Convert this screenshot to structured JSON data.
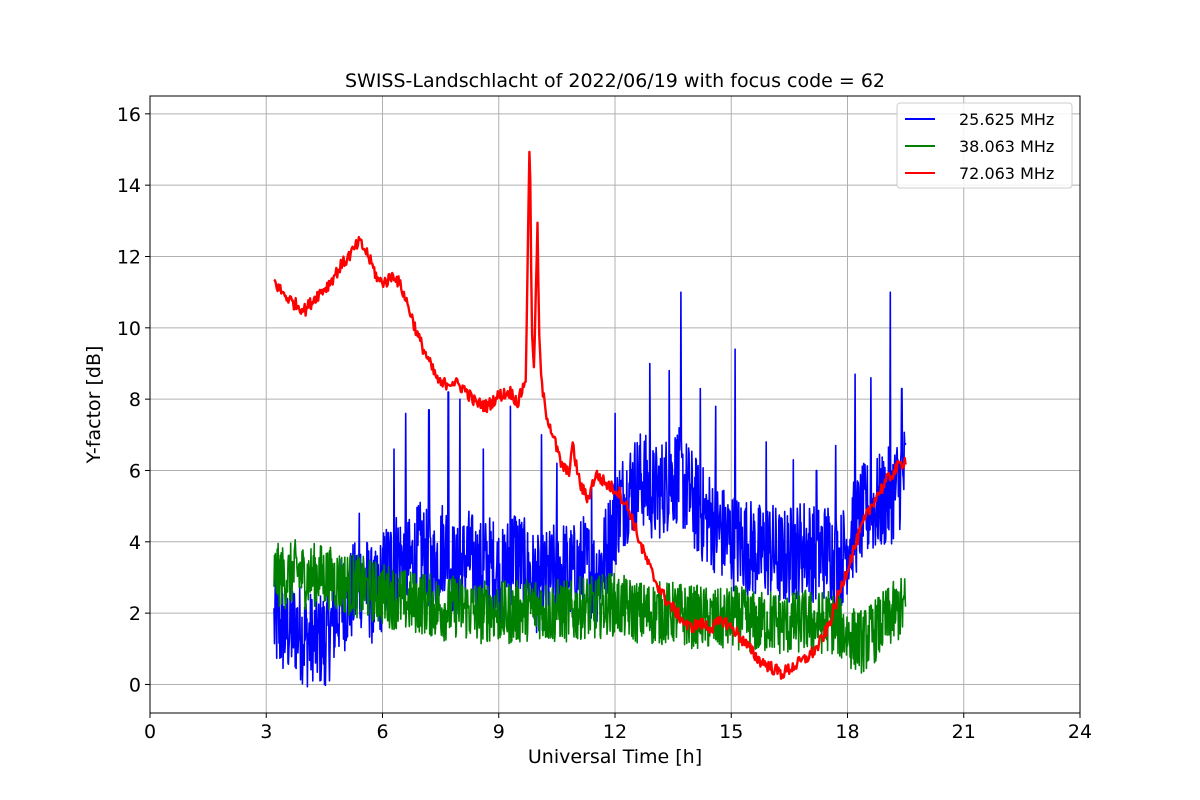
{
  "chart_data": {
    "type": "line",
    "title": "SWISS-Landschlacht of 2022/06/19 with focus code = 62",
    "xlabel": "Universal Time [h]",
    "ylabel": "Y-factor [dB]",
    "xlim": [
      0,
      24
    ],
    "ylim": [
      -0.8,
      16.5
    ],
    "xticks": [
      0,
      3,
      6,
      9,
      12,
      15,
      18,
      21,
      24
    ],
    "yticks": [
      0,
      2,
      4,
      6,
      8,
      10,
      12,
      14,
      16
    ],
    "grid": true,
    "legend_position": "top-right",
    "series": [
      {
        "name": "25.625 MHz",
        "color": "#0000ff",
        "x": [
          3.2,
          3.5,
          3.8,
          4.0,
          4.3,
          4.6,
          4.9,
          5.2,
          5.5,
          5.8,
          6.1,
          6.4,
          6.7,
          7.0,
          7.3,
          7.6,
          7.9,
          8.2,
          8.5,
          8.8,
          9.1,
          9.4,
          9.7,
          10.0,
          10.3,
          10.6,
          10.9,
          11.2,
          11.5,
          11.8,
          12.1,
          12.4,
          12.7,
          13.0,
          13.3,
          13.6,
          13.9,
          14.2,
          14.5,
          14.8,
          15.1,
          15.4,
          15.7,
          16.0,
          16.3,
          16.6,
          16.9,
          17.2,
          17.5,
          17.8,
          18.1,
          18.4,
          18.7,
          19.0,
          19.2,
          19.5
        ],
        "y": [
          1.7,
          1.5,
          1.6,
          1.3,
          1.2,
          1.4,
          2.2,
          2.5,
          3.0,
          2.3,
          3.2,
          3.6,
          3.3,
          3.8,
          3.2,
          4.0,
          3.0,
          3.6,
          3.2,
          3.4,
          3.0,
          3.8,
          3.2,
          2.8,
          3.0,
          3.3,
          3.1,
          3.4,
          3.0,
          3.8,
          5.0,
          5.5,
          5.8,
          5.3,
          5.6,
          5.9,
          5.4,
          4.8,
          4.6,
          4.2,
          4.0,
          3.9,
          3.7,
          3.8,
          3.5,
          3.7,
          3.9,
          3.6,
          3.8,
          3.4,
          4.2,
          4.8,
          5.0,
          5.2,
          5.4,
          6.0
        ],
        "spikes": [
          [
            4.2,
            0.1
          ],
          [
            4.5,
            0.0
          ],
          [
            5.4,
            4.8
          ],
          [
            6.3,
            6.6
          ],
          [
            6.6,
            7.6
          ],
          [
            7.2,
            7.7
          ],
          [
            7.7,
            8.2
          ],
          [
            8.0,
            8.0
          ],
          [
            8.6,
            6.6
          ],
          [
            9.3,
            7.8
          ],
          [
            10.1,
            7.0
          ],
          [
            10.5,
            6.2
          ],
          [
            11.4,
            5.6
          ],
          [
            12.0,
            7.6
          ],
          [
            12.9,
            9.0
          ],
          [
            13.4,
            8.8
          ],
          [
            13.7,
            11.0
          ],
          [
            14.2,
            8.3
          ],
          [
            14.6,
            7.8
          ],
          [
            15.1,
            9.4
          ],
          [
            15.9,
            6.8
          ],
          [
            16.6,
            6.3
          ],
          [
            17.2,
            6.0
          ],
          [
            17.7,
            6.7
          ],
          [
            18.2,
            8.7
          ],
          [
            18.6,
            8.6
          ],
          [
            19.1,
            11.0
          ],
          [
            19.4,
            8.3
          ]
        ]
      },
      {
        "name": "38.063 MHz",
        "color": "#008000",
        "x": [
          3.2,
          3.5,
          3.8,
          4.0,
          4.3,
          4.6,
          4.9,
          5.2,
          5.5,
          5.8,
          6.1,
          6.4,
          6.7,
          7.0,
          7.3,
          7.6,
          7.9,
          8.2,
          8.5,
          8.8,
          9.1,
          9.4,
          9.7,
          10.0,
          10.3,
          10.6,
          10.9,
          11.2,
          11.5,
          11.8,
          12.1,
          12.4,
          12.7,
          13.0,
          13.3,
          13.6,
          13.9,
          14.2,
          14.5,
          14.8,
          15.1,
          15.4,
          15.7,
          16.0,
          16.3,
          16.6,
          16.9,
          17.2,
          17.5,
          17.8,
          18.1,
          18.4,
          18.7,
          19.0,
          19.2,
          19.5
        ],
        "y": [
          3.1,
          3.0,
          3.2,
          3.0,
          3.1,
          3.0,
          2.9,
          2.8,
          2.7,
          2.6,
          2.5,
          2.4,
          2.3,
          2.3,
          2.2,
          2.1,
          2.2,
          2.1,
          2.0,
          2.1,
          2.0,
          2.0,
          2.1,
          2.2,
          2.0,
          2.1,
          2.0,
          2.2,
          2.1,
          2.3,
          2.2,
          2.1,
          2.0,
          2.0,
          2.0,
          2.0,
          1.9,
          1.9,
          1.8,
          1.8,
          1.9,
          1.8,
          1.7,
          1.8,
          1.7,
          1.7,
          1.8,
          1.7,
          1.8,
          1.6,
          1.3,
          1.2,
          1.5,
          1.8,
          2.0,
          2.2
        ]
      },
      {
        "name": "72.063 MHz",
        "color": "#ff0000",
        "x": [
          3.2,
          3.4,
          3.7,
          4.0,
          4.3,
          4.6,
          4.9,
          5.2,
          5.4,
          5.6,
          5.9,
          6.1,
          6.3,
          6.5,
          6.7,
          6.9,
          7.1,
          7.3,
          7.5,
          7.8,
          8.1,
          8.4,
          8.7,
          9.0,
          9.3,
          9.5,
          9.7,
          9.8,
          9.85,
          9.9,
          10.0,
          10.05,
          10.1,
          10.2,
          10.4,
          10.6,
          10.8,
          10.9,
          11.1,
          11.3,
          11.5,
          11.8,
          12.1,
          12.4,
          12.7,
          13.0,
          13.3,
          13.6,
          13.9,
          14.2,
          14.5,
          14.8,
          15.1,
          15.4,
          15.7,
          16.0,
          16.3,
          16.6,
          16.9,
          17.2,
          17.5,
          17.8,
          18.1,
          18.4,
          18.7,
          19.0,
          19.3,
          19.5
        ],
        "y": [
          11.3,
          11.0,
          10.7,
          10.5,
          10.9,
          11.2,
          11.7,
          12.1,
          12.4,
          12.1,
          11.3,
          11.3,
          11.5,
          11.1,
          10.5,
          9.8,
          9.3,
          8.8,
          8.4,
          8.5,
          8.3,
          7.9,
          7.8,
          8.1,
          8.2,
          7.9,
          8.6,
          15.7,
          10.2,
          8.6,
          12.8,
          9.5,
          8.5,
          7.7,
          7.0,
          6.2,
          5.9,
          6.7,
          5.6,
          5.2,
          5.9,
          5.6,
          5.4,
          4.8,
          3.8,
          3.0,
          2.4,
          2.0,
          1.6,
          1.7,
          1.6,
          1.8,
          1.5,
          1.1,
          0.7,
          0.5,
          0.3,
          0.5,
          0.7,
          1.0,
          1.6,
          2.6,
          3.6,
          4.5,
          5.2,
          5.7,
          6.1,
          6.3
        ]
      }
    ]
  }
}
